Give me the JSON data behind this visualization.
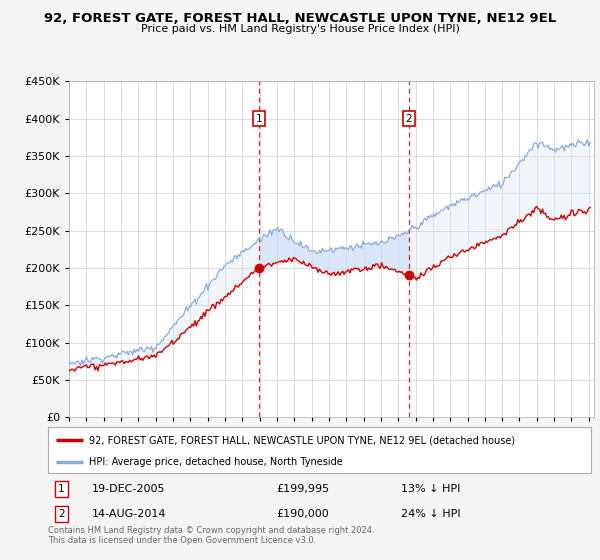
{
  "title": "92, FOREST GATE, FOREST HALL, NEWCASTLE UPON TYNE, NE12 9EL",
  "subtitle": "Price paid vs. HM Land Registry's House Price Index (HPI)",
  "ylim": [
    0,
    450000
  ],
  "yticks": [
    0,
    50000,
    100000,
    150000,
    200000,
    250000,
    300000,
    350000,
    400000,
    450000
  ],
  "xlim_start": 1995.0,
  "xlim_end": 2025.3,
  "sale1_year": 2005.96,
  "sale1_price": 199995,
  "sale1_label": "19-DEC-2005",
  "sale1_amount": "£199,995",
  "sale1_pct": "13% ↓ HPI",
  "sale2_year": 2014.62,
  "sale2_price": 190000,
  "sale2_label": "14-AUG-2014",
  "sale2_amount": "£190,000",
  "sale2_pct": "24% ↓ HPI",
  "line_color_property": "#cc0000",
  "line_color_hpi": "#88aadd",
  "fill_color": "#ccddf5",
  "legend_label_property": "92, FOREST GATE, FOREST HALL, NEWCASTLE UPON TYNE, NE12 9EL (detached house)",
  "legend_label_hpi": "HPI: Average price, detached house, North Tyneside",
  "footer1": "Contains HM Land Registry data © Crown copyright and database right 2024.",
  "footer2": "This data is licensed under the Open Government Licence v3.0.",
  "bg_color": "#f5f5f5",
  "plot_bg": "#ffffff",
  "marker_box_color": "#cc0000"
}
